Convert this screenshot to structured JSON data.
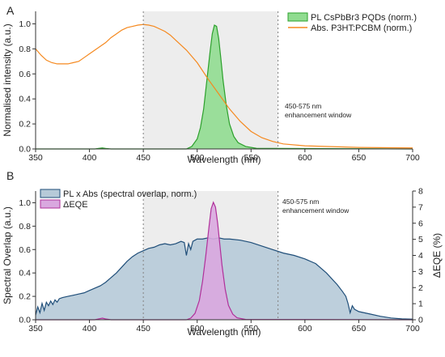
{
  "chart_data": [
    {
      "panel": "A",
      "type": "line",
      "xlabel": "Wavelength (nm)",
      "ylabel": "Normalised intensity (a.u.)",
      "xlim": [
        350,
        700
      ],
      "ylim": [
        0,
        1.1
      ],
      "xticks": [
        "350",
        "400",
        "450",
        "500",
        "550",
        "600",
        "650",
        "700"
      ],
      "yticks": [
        "0.0",
        "0.2",
        "0.4",
        "0.6",
        "0.8",
        "1.0"
      ],
      "shaded_window": {
        "from": 450,
        "to": 575
      },
      "annotation": [
        "450-575 nm",
        "enhancement window"
      ],
      "legend_position": "top-right",
      "series": [
        {
          "name": "PL CsPbBr3 PQDs (norm.)",
          "style": "filled",
          "color": "#2ca02c",
          "fill": "#90dc90",
          "x": [
            350,
            405,
            409,
            412,
            415,
            420,
            490,
            495,
            500,
            503,
            506,
            509,
            512,
            514,
            516,
            518,
            520,
            522,
            524,
            527,
            530,
            534,
            538,
            545,
            555,
            700
          ],
          "y": [
            0,
            0,
            0.005,
            0.008,
            0.004,
            0,
            0,
            0.02,
            0.08,
            0.17,
            0.32,
            0.55,
            0.78,
            0.92,
            0.99,
            0.98,
            0.88,
            0.72,
            0.55,
            0.35,
            0.2,
            0.1,
            0.05,
            0.02,
            0.005,
            0
          ]
        },
        {
          "name": "Abs. P3HT:PCBM (norm.)",
          "style": "line",
          "color": "#f5891f",
          "x": [
            350,
            355,
            360,
            365,
            370,
            375,
            380,
            385,
            390,
            395,
            400,
            405,
            410,
            415,
            420,
            425,
            430,
            435,
            440,
            445,
            450,
            455,
            460,
            465,
            470,
            475,
            480,
            490,
            500,
            510,
            520,
            530,
            540,
            550,
            560,
            570,
            580,
            600,
            650,
            700
          ],
          "y": [
            0.8,
            0.75,
            0.71,
            0.69,
            0.68,
            0.68,
            0.68,
            0.69,
            0.7,
            0.73,
            0.76,
            0.79,
            0.82,
            0.85,
            0.89,
            0.92,
            0.95,
            0.97,
            0.98,
            0.99,
            0.995,
            0.99,
            0.98,
            0.96,
            0.94,
            0.91,
            0.87,
            0.79,
            0.69,
            0.56,
            0.44,
            0.32,
            0.22,
            0.14,
            0.09,
            0.06,
            0.04,
            0.025,
            0.012,
            0.008
          ]
        }
      ]
    },
    {
      "panel": "B",
      "type": "area",
      "xlabel": "Wavelength (nm)",
      "ylabel": "Spectral Overlap (a.u.)",
      "y2label": "ΔEQE (%)",
      "xlim": [
        350,
        700
      ],
      "ylim": [
        0,
        1.1
      ],
      "y2lim": [
        0,
        8
      ],
      "xticks": [
        "350",
        "400",
        "450",
        "500",
        "550",
        "600",
        "650",
        "700"
      ],
      "yticks": [
        "0.0",
        "0.2",
        "0.4",
        "0.6",
        "0.8",
        "1.0"
      ],
      "y2ticks": [
        "0",
        "1",
        "2",
        "3",
        "4",
        "5",
        "6",
        "7",
        "8"
      ],
      "shaded_window": {
        "from": 450,
        "to": 575
      },
      "annotation": [
        "450-575 nm",
        "enhancement window"
      ],
      "legend_position": "top-left",
      "series": [
        {
          "name": "PL x Abs (spectral overlap, norm.)",
          "axis": "left",
          "style": "filled",
          "color": "#1f4e79",
          "fill": "#b6cad8",
          "x": [
            350,
            352,
            354,
            356,
            358,
            360,
            362,
            364,
            366,
            368,
            370,
            372,
            375,
            380,
            385,
            390,
            395,
            400,
            405,
            410,
            415,
            420,
            425,
            430,
            435,
            440,
            445,
            450,
            455,
            460,
            465,
            470,
            475,
            480,
            485,
            488,
            490,
            492,
            494,
            496,
            498,
            500,
            505,
            510,
            515,
            520,
            525,
            530,
            540,
            550,
            560,
            570,
            580,
            590,
            600,
            610,
            620,
            630,
            635,
            638,
            640,
            642,
            644,
            646,
            650,
            660,
            670,
            680,
            690,
            700
          ],
          "y": [
            0.04,
            0.11,
            0.06,
            0.14,
            0.08,
            0.15,
            0.12,
            0.16,
            0.13,
            0.17,
            0.15,
            0.18,
            0.19,
            0.2,
            0.21,
            0.22,
            0.23,
            0.25,
            0.27,
            0.29,
            0.32,
            0.36,
            0.4,
            0.45,
            0.5,
            0.54,
            0.57,
            0.59,
            0.61,
            0.62,
            0.64,
            0.65,
            0.64,
            0.65,
            0.67,
            0.66,
            0.55,
            0.65,
            0.6,
            0.67,
            0.68,
            0.69,
            0.69,
            0.7,
            0.69,
            0.7,
            0.69,
            0.69,
            0.68,
            0.66,
            0.63,
            0.6,
            0.57,
            0.55,
            0.52,
            0.48,
            0.4,
            0.3,
            0.24,
            0.2,
            0.14,
            0.06,
            0.12,
            0.09,
            0.07,
            0.05,
            0.03,
            0.015,
            0.008,
            0.005
          ]
        },
        {
          "name": "ΔEQE",
          "axis": "right",
          "style": "filled",
          "color": "#b0309a",
          "fill": "#d9a8df",
          "x": [
            350,
            405,
            409,
            412,
            415,
            420,
            490,
            494,
            498,
            502,
            505,
            508,
            511,
            513,
            515,
            517,
            519,
            521,
            523,
            526,
            529,
            533,
            537,
            545,
            700
          ],
          "y": [
            0,
            0,
            0.06,
            0.1,
            0.05,
            0,
            0,
            0.1,
            0.4,
            1.2,
            2.4,
            4.0,
            5.8,
            6.9,
            7.3,
            7.0,
            6.0,
            4.7,
            3.4,
            1.9,
            0.9,
            0.35,
            0.12,
            0.02,
            0
          ]
        }
      ]
    }
  ]
}
